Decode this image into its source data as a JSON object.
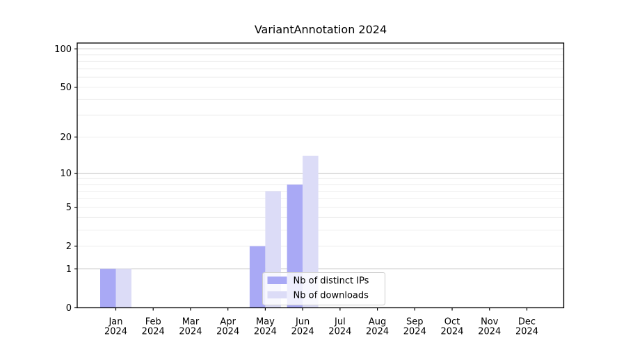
{
  "chart_data": {
    "type": "bar",
    "title": "VariantAnnotation 2024",
    "year": "2024",
    "categories": [
      "Jan",
      "Feb",
      "Mar",
      "Apr",
      "May",
      "Jun",
      "Jul",
      "Aug",
      "Sep",
      "Oct",
      "Nov",
      "Dec"
    ],
    "series": [
      {
        "name": "Nb of distinct IPs",
        "color": "#a9a9f5",
        "values": [
          1,
          0,
          0,
          0,
          2,
          8,
          0,
          0,
          0,
          0,
          0,
          0
        ]
      },
      {
        "name": "Nb of downloads",
        "color": "#dcdcf7",
        "values": [
          1,
          0,
          0,
          0,
          7,
          14,
          0,
          0,
          0,
          0,
          0,
          0
        ]
      }
    ],
    "yscale": "log1p",
    "ylim": [
      0,
      112
    ],
    "y_ticks": [
      0,
      1,
      2,
      5,
      10,
      20,
      50,
      100
    ],
    "y_tick_labels": [
      "0",
      "1",
      "2",
      "5",
      "10",
      "20",
      "50",
      "100"
    ],
    "grid": {
      "on": true,
      "minor_values": [
        2,
        3,
        4,
        5,
        6,
        7,
        8,
        9,
        20,
        30,
        40,
        50,
        60,
        70,
        80,
        90
      ],
      "major_values": [
        1,
        10,
        100
      ],
      "minor_color": "#ededed",
      "major_color": "#c6c6c6"
    },
    "legend": {
      "position": "lower-center-inside",
      "background": "#ffffff",
      "border_color": "#cccccc"
    },
    "spine_color": "#000000"
  }
}
